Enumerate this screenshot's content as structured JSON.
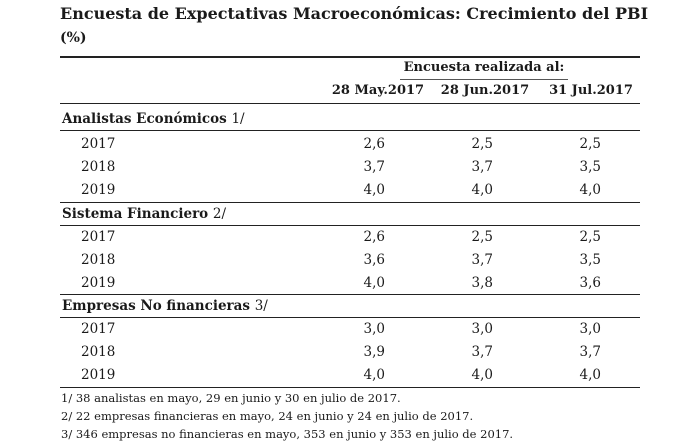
{
  "title": "Encuesta de Expectativas Macroeconómicas: Crecimiento del PBI",
  "unit": "(%)",
  "survey_header": "Encuesta realizada al:",
  "columns": [
    "28 May.2017",
    "28 Jun.2017",
    "31 Jul.2017"
  ],
  "sections": [
    {
      "title": "Analistas Económicos",
      "ref": "1/",
      "rows": [
        {
          "year": "2017",
          "values": [
            "2,6",
            "2,5",
            "2,5"
          ]
        },
        {
          "year": "2018",
          "values": [
            "3,7",
            "3,7",
            "3,5"
          ]
        },
        {
          "year": "2019",
          "values": [
            "4,0",
            "4,0",
            "4,0"
          ]
        }
      ]
    },
    {
      "title": "Sistema Financiero",
      "ref": "2/",
      "rows": [
        {
          "year": "2017",
          "values": [
            "2,6",
            "2,5",
            "2,5"
          ]
        },
        {
          "year": "2018",
          "values": [
            "3,6",
            "3,7",
            "3,5"
          ]
        },
        {
          "year": "2019",
          "values": [
            "4,0",
            "3,8",
            "3,6"
          ]
        }
      ]
    },
    {
      "title": "Empresas No financieras",
      "ref": "3/",
      "rows": [
        {
          "year": "2017",
          "values": [
            "3,0",
            "3,0",
            "3,0"
          ]
        },
        {
          "year": "2018",
          "values": [
            "3,9",
            "3,7",
            "3,7"
          ]
        },
        {
          "year": "2019",
          "values": [
            "4,0",
            "4,0",
            "4,0"
          ]
        }
      ]
    }
  ],
  "footnotes": [
    "1/ 38 analistas en mayo, 29 en junio y 30 en julio de 2017.",
    "2/ 22 empresas financieras en mayo, 24 en junio y 24 en julio de 2017.",
    "3/ 346 empresas no financieras en mayo, 353 en junio y 353 en julio de 2017."
  ]
}
